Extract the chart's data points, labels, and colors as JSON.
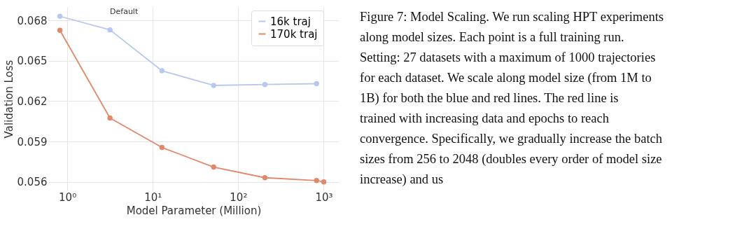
{
  "chart_data": {
    "type": "line",
    "xlabel": "Model Parameter (Million)",
    "ylabel": "Validation Loss",
    "log": "x",
    "xlim": [
      0.6,
      1500
    ],
    "ylim": [
      0.05536,
      0.069
    ],
    "xticks": [
      {
        "value": 1,
        "label": "10⁰"
      },
      {
        "value": 10,
        "label": "10¹"
      },
      {
        "value": 100,
        "label": "10²"
      },
      {
        "value": 1000,
        "label": "10³"
      }
    ],
    "yticks": [
      0.056,
      0.059,
      0.062,
      0.065,
      0.068
    ],
    "grid": true,
    "legend": "top right",
    "marker": "circle",
    "line_style": "solid",
    "series": [
      {
        "name": "16k traj",
        "color": "#b7c8ef",
        "x": [
          0.82,
          3.16,
          12.8,
          51.5,
          205,
          824
        ],
        "values": [
          0.06831,
          0.0673,
          0.06426,
          0.06317,
          0.06324,
          0.0633
        ]
      },
      {
        "name": "170k traj",
        "color": "#e0896a",
        "x": [
          0.82,
          3.16,
          12.8,
          51.5,
          205,
          824,
          1000
        ],
        "values": [
          0.06727,
          0.06075,
          0.05856,
          0.0571,
          0.05631,
          0.0561,
          0.056
        ]
      }
    ],
    "annotations": [
      {
        "text": "Default",
        "x": 3.16,
        "y": 0.0673
      },
      "Figure 7: Model Scaling. We run scaling HPT experiments along model sizes. Each point is a full training run. Setting: 27 datasets with a maximum of 1000 trajectories for each dataset. We scale along model size (from 1M to 1B) for both the blue and red lines. The red line is trained with increasing data and epochs to reach convergence. Specifically, we gradually increase the batch sizes from 256 to 2048 (doubles every order of model size increase) and us"
    ]
  }
}
